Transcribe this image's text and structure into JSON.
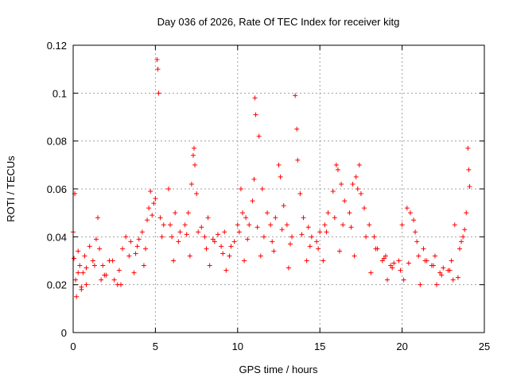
{
  "chart_data": {
    "type": "scatter",
    "title": "Day 036 of 2026, Rate Of TEC Index for receiver kitg",
    "xlabel": "GPS time / hours",
    "ylabel": "ROTI / TECUs",
    "xlim": [
      0,
      25
    ],
    "ylim": [
      0,
      0.12
    ],
    "xticks": [
      0,
      5,
      10,
      15,
      20,
      25
    ],
    "yticks": [
      0,
      0.02,
      0.04,
      0.06,
      0.08,
      0.1,
      0.12
    ],
    "xtick_labels": [
      "0",
      "5",
      "10",
      "15",
      "20",
      "25"
    ],
    "ytick_labels": [
      "0",
      "0.02",
      "0.04",
      "0.06",
      "0.08",
      "0.1",
      "0.12"
    ],
    "grid": true,
    "marker": "+",
    "color": "#ff0000",
    "series": [
      {
        "name": "ROTI",
        "x": [
          0.0,
          0.05,
          0.1,
          0.15,
          0.2,
          0.3,
          0.4,
          0.5,
          0.6,
          0.7,
          0.8,
          1.0,
          1.2,
          1.4,
          1.5,
          1.6,
          1.8,
          2.0,
          2.2,
          2.5,
          2.8,
          3.0,
          3.2,
          3.5,
          3.8,
          4.0,
          4.2,
          4.5,
          4.6,
          4.7,
          4.8,
          4.9,
          5.0,
          5.1,
          5.15,
          5.2,
          5.3,
          5.5,
          5.8,
          6.0,
          6.2,
          6.5,
          6.8,
          7.0,
          7.2,
          7.3,
          7.35,
          7.4,
          7.5,
          7.8,
          8.0,
          8.2,
          8.5,
          8.8,
          9.0,
          9.2,
          9.5,
          9.8,
          10.0,
          10.2,
          10.3,
          10.5,
          10.7,
          10.9,
          11.0,
          11.05,
          11.1,
          11.3,
          11.5,
          11.8,
          12.0,
          12.3,
          12.5,
          12.6,
          12.8,
          13.0,
          13.3,
          13.5,
          13.6,
          13.65,
          13.8,
          14.0,
          14.3,
          14.5,
          14.8,
          15.0,
          15.3,
          15.5,
          15.8,
          16.0,
          16.1,
          16.3,
          16.5,
          16.8,
          17.0,
          17.2,
          17.4,
          17.5,
          17.7,
          18.0,
          18.3,
          18.5,
          18.8,
          19.0,
          19.3,
          19.5,
          19.8,
          20.0,
          20.3,
          20.5,
          20.7,
          20.9,
          21.0,
          21.3,
          21.5,
          21.8,
          22.0,
          22.3,
          22.5,
          22.8,
          23.0,
          23.2,
          23.5,
          23.7,
          23.8,
          23.9,
          24.0,
          24.05,
          24.1,
          0.3,
          0.8,
          1.3,
          1.9,
          2.4,
          2.9,
          3.4,
          3.9,
          4.4,
          5.4,
          5.9,
          6.4,
          6.9,
          7.6,
          8.1,
          8.6,
          9.1,
          9.6,
          10.1,
          10.6,
          11.2,
          11.6,
          12.1,
          12.7,
          13.2,
          13.9,
          14.4,
          14.9,
          15.4,
          15.9,
          16.4,
          16.9,
          17.3,
          17.8,
          18.4,
          18.9,
          19.4,
          19.9,
          20.4,
          20.8,
          21.4,
          21.9,
          22.4,
          22.9,
          23.4,
          23.6,
          0.5,
          1.7,
          2.7,
          3.7,
          4.3,
          6.1,
          7.1,
          8.3,
          9.3,
          10.4,
          11.4,
          12.2,
          13.1,
          14.2,
          15.2,
          16.2,
          17.1,
          18.1,
          19.1,
          20.1,
          21.1,
          22.1,
          23.1
        ],
        "y": [
          0.042,
          0.031,
          0.058,
          0.022,
          0.015,
          0.034,
          0.028,
          0.019,
          0.025,
          0.032,
          0.027,
          0.036,
          0.03,
          0.039,
          0.048,
          0.035,
          0.028,
          0.024,
          0.03,
          0.022,
          0.026,
          0.035,
          0.04,
          0.038,
          0.033,
          0.039,
          0.042,
          0.047,
          0.052,
          0.059,
          0.049,
          0.054,
          0.056,
          0.114,
          0.11,
          0.1,
          0.048,
          0.045,
          0.06,
          0.04,
          0.05,
          0.042,
          0.045,
          0.05,
          0.062,
          0.074,
          0.077,
          0.07,
          0.058,
          0.044,
          0.04,
          0.048,
          0.039,
          0.041,
          0.036,
          0.042,
          0.032,
          0.038,
          0.045,
          0.06,
          0.05,
          0.048,
          0.045,
          0.055,
          0.064,
          0.098,
          0.091,
          0.082,
          0.06,
          0.05,
          0.045,
          0.048,
          0.07,
          0.065,
          0.053,
          0.045,
          0.04,
          0.099,
          0.085,
          0.072,
          0.058,
          0.048,
          0.044,
          0.04,
          0.038,
          0.042,
          0.045,
          0.05,
          0.059,
          0.07,
          0.068,
          0.062,
          0.055,
          0.05,
          0.062,
          0.065,
          0.07,
          0.058,
          0.052,
          0.045,
          0.04,
          0.035,
          0.03,
          0.032,
          0.028,
          0.029,
          0.03,
          0.045,
          0.052,
          0.05,
          0.047,
          0.038,
          0.032,
          0.035,
          0.03,
          0.028,
          0.032,
          0.025,
          0.027,
          0.026,
          0.03,
          0.045,
          0.035,
          0.04,
          0.043,
          0.05,
          0.077,
          0.068,
          0.061,
          0.025,
          0.02,
          0.028,
          0.024,
          0.03,
          0.02,
          0.032,
          0.036,
          0.035,
          0.04,
          0.045,
          0.038,
          0.041,
          0.042,
          0.035,
          0.038,
          0.033,
          0.036,
          0.042,
          0.039,
          0.044,
          0.04,
          0.038,
          0.043,
          0.037,
          0.041,
          0.036,
          0.035,
          0.042,
          0.048,
          0.045,
          0.044,
          0.06,
          0.04,
          0.035,
          0.031,
          0.027,
          0.026,
          0.029,
          0.042,
          0.03,
          0.028,
          0.024,
          0.026,
          0.023,
          0.038,
          0.018,
          0.022,
          0.02,
          0.025,
          0.028,
          0.03,
          0.032,
          0.028,
          0.026,
          0.03,
          0.032,
          0.034,
          0.027,
          0.03,
          0.03,
          0.034,
          0.032,
          0.025,
          0.022,
          0.022,
          0.02,
          0.02,
          0.022
        ]
      }
    ]
  }
}
